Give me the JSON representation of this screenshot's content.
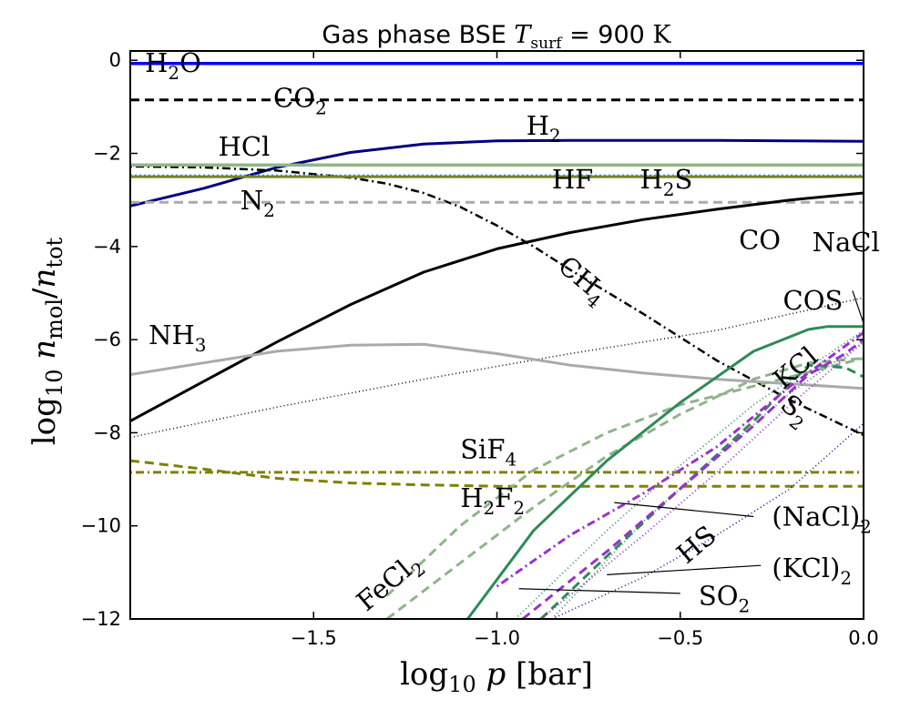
{
  "chart_data": {
    "type": "line",
    "title": "Gas phase BSE T_surf = 900 K",
    "xlabel": "log10 p [bar]",
    "ylabel": "log10 n_mol / n_tot",
    "xlim": [
      -2.0,
      0.0
    ],
    "ylim": [
      -12,
      0.2
    ],
    "xticks": [
      -1.5,
      -1.0,
      -0.5,
      0.0
    ],
    "xtick_labels": [
      "−1.5",
      "−1.0",
      "−0.5",
      "0.0"
    ],
    "yticks": [
      0,
      -2,
      -4,
      -6,
      -8,
      -10,
      -12
    ],
    "ytick_labels": [
      "0",
      "−2",
      "−4",
      "−6",
      "−8",
      "−10",
      "−12"
    ],
    "grid": false,
    "legend": "none",
    "series": [
      {
        "name": "H2O",
        "color": "#0000ff",
        "width": 3.5,
        "dash": "",
        "x": [
          -2.0,
          0.0
        ],
        "y": [
          -0.07,
          -0.07
        ]
      },
      {
        "name": "CO2",
        "color": "#000000",
        "width": 3,
        "dash": "10,6",
        "x": [
          -2.0,
          0.0
        ],
        "y": [
          -0.85,
          -0.85
        ]
      },
      {
        "name": "H2",
        "color": "#000080",
        "width": 3,
        "dash": "",
        "x": [
          -2.0,
          -1.8,
          -1.6,
          -1.4,
          -1.2,
          -1.0,
          -0.8,
          -0.6,
          -0.4,
          -0.2,
          0.0
        ],
        "y": [
          -3.13,
          -2.75,
          -2.3,
          -1.98,
          -1.8,
          -1.73,
          -1.72,
          -1.72,
          -1.72,
          -1.73,
          -1.74
        ]
      },
      {
        "name": "HCl",
        "color": "#000000",
        "width": 2.5,
        "dash": "2,4,9,4",
        "x": [
          -2.0,
          -1.8,
          -1.6,
          -1.4,
          -1.3,
          -1.2,
          -1.1,
          -1.0,
          -0.9,
          -0.8,
          -0.6,
          -0.4,
          -0.2,
          0.0
        ],
        "y": [
          -2.28,
          -2.3,
          -2.37,
          -2.52,
          -2.65,
          -2.85,
          -3.15,
          -3.55,
          -4.0,
          -4.5,
          -5.45,
          -6.45,
          -7.3,
          -8.05
        ]
      },
      {
        "name": "HF_line",
        "color": "#808000",
        "width": 3,
        "dash": "",
        "x": [
          -2.0,
          0.0
        ],
        "y": [
          -2.5,
          -2.5
        ]
      },
      {
        "name": "H2S_line",
        "color": "#1f9ecf",
        "width": 2,
        "dash": "2,3",
        "x": [
          -2.0,
          0.0
        ],
        "y": [
          -2.47,
          -2.47
        ]
      },
      {
        "name": "sage_line",
        "color": "#8fb58a",
        "width": 3.5,
        "dash": "",
        "x": [
          -2.0,
          0.0
        ],
        "y": [
          -2.25,
          -2.25
        ]
      },
      {
        "name": "N2",
        "color": "#aaaaaa",
        "width": 3,
        "dash": "10,6",
        "x": [
          -2.0,
          0.0
        ],
        "y": [
          -3.05,
          -3.05
        ]
      },
      {
        "name": "CO",
        "color": "#000000",
        "width": 3,
        "dash": "",
        "x": [
          -2.0,
          -1.8,
          -1.6,
          -1.4,
          -1.2,
          -1.0,
          -0.8,
          -0.6,
          -0.4,
          -0.2,
          0.0
        ],
        "y": [
          -7.75,
          -6.9,
          -6.05,
          -5.25,
          -4.55,
          -4.05,
          -3.7,
          -3.42,
          -3.2,
          -3.0,
          -2.85
        ]
      },
      {
        "name": "COS",
        "color": "#000000",
        "width": 1.5,
        "dash": "1,3",
        "x": [
          -2.0,
          -1.6,
          -1.2,
          -0.8,
          -0.4,
          0.0
        ],
        "y": [
          -8.1,
          -7.45,
          -6.85,
          -6.3,
          -5.8,
          -5.1
        ]
      },
      {
        "name": "NH3",
        "color": "#aaaaaa",
        "width": 3,
        "dash": "",
        "x": [
          -2.0,
          -1.8,
          -1.6,
          -1.4,
          -1.2,
          -1.0,
          -0.8,
          -0.6,
          -0.4,
          -0.2,
          0.0
        ],
        "y": [
          -6.75,
          -6.5,
          -6.25,
          -6.12,
          -6.1,
          -6.3,
          -6.55,
          -6.72,
          -6.85,
          -6.95,
          -7.05
        ]
      },
      {
        "name": "SiF4",
        "color": "#808000",
        "width": 3,
        "dash": "2,4,9,4",
        "x": [
          -2.0,
          0.0
        ],
        "y": [
          -8.85,
          -8.85
        ]
      },
      {
        "name": "H2F2",
        "color": "#808000",
        "width": 3,
        "dash": "10,6",
        "x": [
          -2.0,
          -1.8,
          -1.6,
          -1.4,
          -1.2,
          -1.0,
          -0.6,
          0.0
        ],
        "y": [
          -8.6,
          -8.78,
          -8.98,
          -9.08,
          -9.12,
          -9.15,
          -9.15,
          -9.15
        ]
      },
      {
        "name": "FeCl2",
        "color": "#8fb58a",
        "width": 3,
        "dash": "10,6",
        "x": [
          -1.3,
          -1.1,
          -0.9,
          -0.7,
          -0.5,
          -0.3,
          -0.15,
          0.0
        ],
        "y": [
          -12.0,
          -10.8,
          -9.6,
          -8.5,
          -7.6,
          -6.85,
          -6.5,
          -6.4
        ]
      },
      {
        "name": "FeCl2_b",
        "color": "#8fb58a",
        "width": 3,
        "dash": "10,6",
        "x": [
          -1.3,
          -1.1,
          -0.9,
          -0.7,
          -0.5,
          -0.3,
          -0.1,
          0.0
        ],
        "y": [
          -11.5,
          -10.0,
          -8.8,
          -8.0,
          -7.4,
          -7.0,
          -6.6,
          -6.4
        ]
      },
      {
        "name": "NaCl",
        "color": "#2e8b57",
        "width": 3,
        "dash": "",
        "x": [
          -1.08,
          -0.9,
          -0.7,
          -0.5,
          -0.3,
          -0.15,
          -0.1,
          0.0
        ],
        "y": [
          -12.0,
          -10.1,
          -8.6,
          -7.35,
          -6.25,
          -5.78,
          -5.72,
          -5.72
        ]
      },
      {
        "name": "NaCl_dotted",
        "color": "#2e8b57",
        "width": 1.8,
        "dash": "1,3",
        "x": [
          -0.95,
          -0.7,
          -0.5,
          -0.3,
          -0.15,
          0.0
        ],
        "y": [
          -12.0,
          -10.1,
          -8.7,
          -7.4,
          -6.6,
          -5.8
        ]
      },
      {
        "name": "KCl_dotted",
        "color": "#2e8b57",
        "width": 1.8,
        "dash": "1,3",
        "x": [
          -0.85,
          -0.6,
          -0.4,
          -0.2,
          0.0
        ],
        "y": [
          -12.0,
          -9.9,
          -8.5,
          -7.15,
          -6.05
        ]
      },
      {
        "name": "NaCl2_dashed",
        "color": "#2e8b57",
        "width": 3,
        "dash": "10,6",
        "x": [
          -0.88,
          -0.7,
          -0.5,
          -0.3,
          -0.15,
          -0.05,
          0.0
        ],
        "y": [
          -12.0,
          -10.65,
          -9.2,
          -7.75,
          -6.55,
          -6.6,
          -6.8
        ]
      },
      {
        "name": "S2",
        "color": "#9932cc",
        "width": 3,
        "dash": "10,6",
        "x": [
          -0.93,
          -0.7,
          -0.5,
          -0.3,
          -0.15,
          -0.05,
          0.0
        ],
        "y": [
          -12.0,
          -10.55,
          -9.2,
          -7.85,
          -6.75,
          -6.3,
          -6.0
        ]
      },
      {
        "name": "KCl2_dashdot",
        "color": "#9932cc",
        "width": 3,
        "dash": "2,4,9,4",
        "x": [
          -1.0,
          -0.8,
          -0.6,
          -0.4,
          -0.2,
          0.0
        ],
        "y": [
          -11.3,
          -10.2,
          -9.3,
          -8.3,
          -7.0,
          -5.85
        ]
      },
      {
        "name": "HS_dotted",
        "color": "#9932cc",
        "width": 2,
        "dash": "1,3",
        "x": [
          -0.88,
          -0.6,
          -0.4,
          -0.2,
          0.0
        ],
        "y": [
          -12.0,
          -10.2,
          -8.85,
          -7.4,
          -6.05
        ]
      },
      {
        "name": "SO2",
        "color": "#00008b",
        "width": 1.5,
        "dash": "1,3",
        "x": [
          -0.85,
          -0.6,
          -0.4,
          -0.2,
          0.0
        ],
        "y": [
          -12.0,
          -11.1,
          -10.2,
          -9.2,
          -7.8
        ]
      }
    ],
    "labels": [
      {
        "key": "H2O",
        "text": "H",
        "sub": "2",
        "tail": "O",
        "x": -1.96,
        "y": -0.25
      },
      {
        "key": "CO2",
        "text": "CO",
        "sub": "2",
        "tail": "",
        "x": -1.61,
        "y": -1.0
      },
      {
        "key": "H2",
        "text": "H",
        "sub": "2",
        "tail": "",
        "x": -0.92,
        "y": -1.6
      },
      {
        "key": "HCl",
        "text": "HCl",
        "sub": "",
        "tail": "",
        "x": -1.76,
        "y": -2.05
      },
      {
        "key": "HF",
        "text": "HF",
        "sub": "",
        "tail": "",
        "x": -0.85,
        "y": -2.75
      },
      {
        "key": "H2S",
        "text": "H",
        "sub": "2",
        "tail": "S",
        "x": -0.61,
        "y": -2.75
      },
      {
        "key": "N2",
        "text": "N",
        "sub": "2",
        "tail": "",
        "x": -1.7,
        "y": -3.2
      },
      {
        "key": "CO",
        "text": "CO",
        "sub": "",
        "tail": "",
        "x": -0.34,
        "y": -4.05
      },
      {
        "key": "NaCl",
        "text": "NaCl",
        "sub": "",
        "tail": "",
        "x": -0.14,
        "y": -4.1
      },
      {
        "key": "COS",
        "text": "COS",
        "sub": "",
        "tail": "",
        "x": -0.22,
        "y": -5.35
      },
      {
        "key": "NH3",
        "text": "NH",
        "sub": "3",
        "tail": "",
        "x": -1.95,
        "y": -6.1
      },
      {
        "key": "SiF4",
        "text": "SiF",
        "sub": "4",
        "tail": "",
        "x": -1.1,
        "y": -8.55
      },
      {
        "key": "H2F2",
        "text": "H",
        "sub": "2",
        "tail": "F",
        "sub2": "2",
        "x": -1.1,
        "y": -9.6
      },
      {
        "key": "NaCl2",
        "text": "(NaCl)",
        "sub": "2",
        "tail": "",
        "x": -0.25,
        "y": -10.0
      },
      {
        "key": "KCl2",
        "text": "(KCl)",
        "sub": "2",
        "tail": "",
        "x": -0.25,
        "y": -11.1
      },
      {
        "key": "SO2",
        "text": "SO",
        "sub": "2",
        "tail": "",
        "x": -0.45,
        "y": -11.7
      }
    ],
    "rotated_labels": [
      {
        "key": "CH4",
        "text": "CH",
        "sub": "4",
        "x": -0.78,
        "y": -4.85,
        "angle": 40
      },
      {
        "key": "KCl",
        "text": "KCl",
        "sub": "",
        "x": -0.17,
        "y": -6.75,
        "angle": -40
      },
      {
        "key": "S2",
        "text": "S",
        "sub": "2",
        "x": -0.2,
        "y": -7.65,
        "angle": 40
      },
      {
        "key": "HS",
        "text": "HS",
        "sub": "",
        "x": -0.44,
        "y": -10.55,
        "angle": -40
      },
      {
        "key": "FeCl2",
        "text": "FeCl",
        "sub": "2",
        "x": -1.28,
        "y": -11.35,
        "angle": -40
      }
    ],
    "leaders": [
      {
        "from": [
          -0.03,
          -4.95
        ],
        "to": [
          0.0,
          -5.65
        ]
      },
      {
        "from": [
          -0.3,
          -9.8
        ],
        "to": [
          -0.68,
          -9.5
        ]
      },
      {
        "from": [
          -0.28,
          -10.85
        ],
        "to": [
          -0.7,
          -11.05
        ]
      },
      {
        "from": [
          -0.5,
          -11.45
        ],
        "to": [
          -0.94,
          -11.35
        ]
      }
    ]
  }
}
